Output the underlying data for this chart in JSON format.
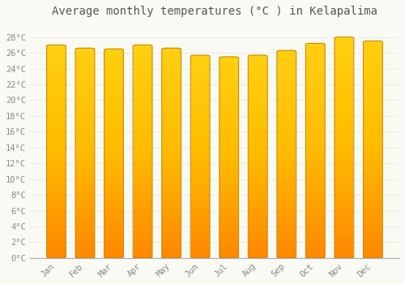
{
  "title": "Average monthly temperatures (°C ) in Kelapalima",
  "months": [
    "Jan",
    "Feb",
    "Mar",
    "Apr",
    "May",
    "Jun",
    "Jul",
    "Aug",
    "Sep",
    "Oct",
    "Nov",
    "Dec"
  ],
  "values": [
    27.0,
    26.6,
    26.5,
    27.0,
    26.6,
    25.7,
    25.5,
    25.7,
    26.3,
    27.2,
    28.0,
    27.5
  ],
  "bar_color_center": "#FFB800",
  "bar_color_edge": "#E07800",
  "bar_color_top": "#FFCC00",
  "bar_color_bottom": "#FF9900",
  "background_color": "#FAFAF5",
  "grid_color": "#E8E8E8",
  "ylim": [
    0,
    30
  ],
  "yticks": [
    0,
    2,
    4,
    6,
    8,
    10,
    12,
    14,
    16,
    18,
    20,
    22,
    24,
    26,
    28
  ],
  "title_fontsize": 10,
  "tick_fontsize": 7.5,
  "title_color": "#555555",
  "tick_color": "#888888",
  "bar_width": 0.65,
  "border_color": "#CC8800",
  "border_width": 0.8
}
